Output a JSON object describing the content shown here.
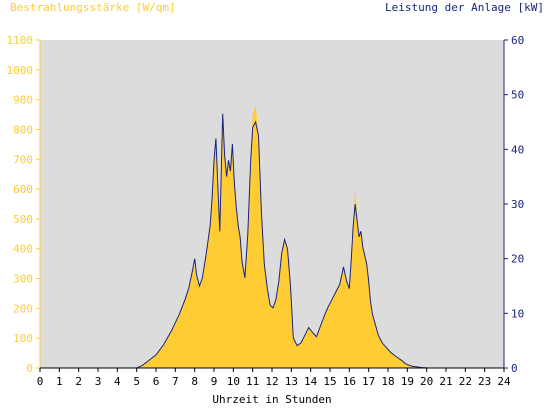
{
  "colors": {
    "irradiance_fill": "#ffcc33",
    "power_line": "#1a237e",
    "plot_background": "#dcdcdc",
    "left_axis_text": "#ffcc33",
    "right_axis_text": "#1a237e",
    "x_axis_text": "#000000"
  },
  "chart_data": {
    "type": "area",
    "title": "",
    "left_axis_label": "Bestrahlungsstärke [W/qm]",
    "right_axis_label": "Leistung der Anlage [kW]",
    "xlabel": "Uhrzeit in Stunden",
    "xlim": [
      0,
      24
    ],
    "ylim_left": [
      0,
      1100
    ],
    "ylim_right": [
      0,
      60
    ],
    "x_ticks": [
      "0",
      "1",
      "2",
      "3",
      "4",
      "5",
      "6",
      "7",
      "8",
      "9",
      "10",
      "11",
      "12",
      "13",
      "14",
      "15",
      "16",
      "17",
      "18",
      "19",
      "20",
      "21",
      "22",
      "23",
      "24"
    ],
    "y_ticks_left": [
      "0",
      "100",
      "200",
      "300",
      "400",
      "500",
      "600",
      "700",
      "800",
      "900",
      "1000",
      "1100"
    ],
    "y_ticks_right": [
      "0",
      "10",
      "20",
      "30",
      "40",
      "50",
      "60"
    ],
    "grid": false,
    "series": [
      {
        "name": "Bestrahlungsstärke [W/qm]",
        "axis": "left",
        "style": "area",
        "x": [
          0,
          5.0,
          5.3,
          5.6,
          6.0,
          6.4,
          6.8,
          7.2,
          7.5,
          7.7,
          7.9,
          8.0,
          8.1,
          8.25,
          8.4,
          8.6,
          8.8,
          8.9,
          9.0,
          9.1,
          9.2,
          9.3,
          9.45,
          9.55,
          9.65,
          9.75,
          9.85,
          9.95,
          10.05,
          10.15,
          10.25,
          10.35,
          10.45,
          10.6,
          10.75,
          10.9,
          11.0,
          11.15,
          11.3,
          11.45,
          11.6,
          11.75,
          11.9,
          12.05,
          12.2,
          12.35,
          12.5,
          12.65,
          12.8,
          12.95,
          13.1,
          13.3,
          13.5,
          13.7,
          13.9,
          14.1,
          14.3,
          14.5,
          14.7,
          14.9,
          15.1,
          15.3,
          15.5,
          15.7,
          15.85,
          16.0,
          16.1,
          16.2,
          16.3,
          16.4,
          16.5,
          16.6,
          16.7,
          16.8,
          16.9,
          17.0,
          17.1,
          17.2,
          17.35,
          17.5,
          17.7,
          17.9,
          18.1,
          18.3,
          18.5,
          18.7,
          18.9,
          19.1,
          19.3,
          19.5,
          19.7,
          19.9,
          20.1,
          24
        ],
        "values": [
          0,
          0,
          10,
          25,
          45,
          80,
          125,
          180,
          230,
          270,
          330,
          340,
          300,
          270,
          300,
          380,
          470,
          560,
          700,
          770,
          600,
          450,
          860,
          720,
          650,
          700,
          660,
          760,
          620,
          540,
          480,
          440,
          360,
          300,
          450,
          700,
          850,
          880,
          780,
          520,
          350,
          270,
          210,
          200,
          230,
          290,
          390,
          430,
          400,
          280,
          100,
          75,
          85,
          110,
          135,
          120,
          105,
          140,
          175,
          205,
          230,
          255,
          280,
          340,
          300,
          270,
          360,
          470,
          600,
          520,
          440,
          460,
          410,
          380,
          350,
          290,
          220,
          180,
          145,
          110,
          85,
          70,
          55,
          45,
          35,
          25,
          15,
          10,
          5,
          3,
          2,
          1,
          0,
          0
        ]
      },
      {
        "name": "Leistung der Anlage [kW]",
        "axis": "right",
        "style": "line",
        "x": [
          0,
          5.0,
          5.3,
          5.6,
          6.0,
          6.4,
          6.8,
          7.2,
          7.5,
          7.7,
          7.9,
          8.0,
          8.1,
          8.25,
          8.4,
          8.6,
          8.8,
          8.9,
          9.0,
          9.1,
          9.2,
          9.3,
          9.45,
          9.55,
          9.65,
          9.75,
          9.85,
          9.95,
          10.05,
          10.15,
          10.25,
          10.35,
          10.45,
          10.6,
          10.75,
          10.9,
          11.0,
          11.15,
          11.3,
          11.45,
          11.6,
          11.75,
          11.9,
          12.05,
          12.2,
          12.35,
          12.5,
          12.65,
          12.8,
          12.95,
          13.1,
          13.3,
          13.5,
          13.7,
          13.9,
          14.1,
          14.3,
          14.5,
          14.7,
          14.9,
          15.1,
          15.3,
          15.5,
          15.7,
          15.85,
          16.0,
          16.1,
          16.2,
          16.3,
          16.4,
          16.5,
          16.6,
          16.7,
          16.8,
          16.9,
          17.0,
          17.1,
          17.2,
          17.35,
          17.5,
          17.7,
          17.9,
          18.1,
          18.3,
          18.5,
          18.7,
          18.9,
          19.1,
          19.3,
          19.5,
          19.7,
          19.9,
          20.1,
          24
        ],
        "values": [
          0,
          0,
          0.5,
          1.3,
          2.4,
          4.3,
          6.8,
          9.8,
          12.5,
          14.7,
          18.0,
          20.0,
          17.0,
          15.0,
          16.5,
          21.0,
          26.0,
          31.0,
          38.0,
          42.0,
          33.0,
          25.0,
          46.5,
          39.0,
          35.0,
          38.0,
          36.0,
          41.0,
          34.0,
          29.5,
          26.0,
          24.0,
          19.5,
          16.5,
          24.5,
          38.0,
          44.0,
          45.0,
          42.5,
          28.5,
          19.0,
          14.7,
          11.5,
          11.0,
          12.5,
          15.8,
          21.0,
          23.5,
          21.8,
          15.2,
          5.5,
          4.1,
          4.6,
          6.0,
          7.4,
          6.5,
          5.7,
          7.6,
          9.5,
          11.2,
          12.5,
          13.9,
          15.3,
          18.5,
          16.0,
          14.5,
          20.0,
          26.0,
          30.0,
          27.0,
          24.0,
          25.0,
          22.0,
          20.5,
          19.0,
          15.8,
          12.0,
          9.8,
          7.9,
          6.0,
          4.6,
          3.8,
          3.0,
          2.4,
          1.9,
          1.4,
          0.8,
          0.5,
          0.3,
          0.2,
          0.1,
          0.05,
          0,
          0
        ]
      }
    ]
  }
}
